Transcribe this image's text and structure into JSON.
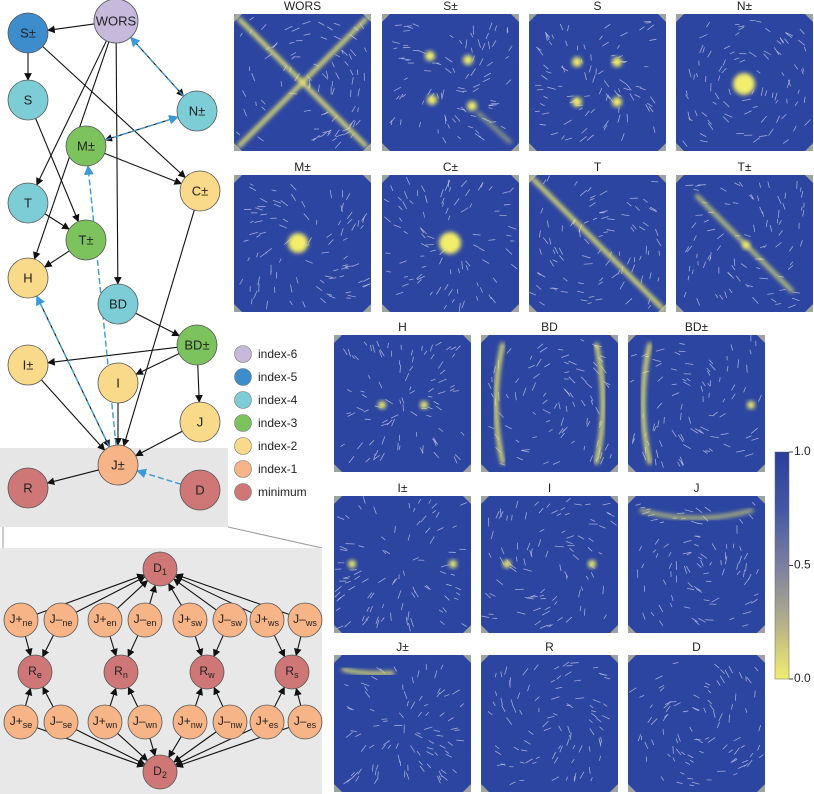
{
  "landscape": {
    "nodes": [
      {
        "label": "WORS",
        "color": "#c6b9dc"
      },
      {
        "label": "S±",
        "color": "#3d8ccc"
      },
      {
        "label": "S",
        "color": "#7dcdd6"
      },
      {
        "label": "N±",
        "color": "#7dcdd6"
      },
      {
        "label": "M±",
        "color": "#7cc25d"
      },
      {
        "label": "C±",
        "color": "#f9d98a"
      },
      {
        "label": "T",
        "color": "#7dcdd6"
      },
      {
        "label": "T±",
        "color": "#7cc25d"
      },
      {
        "label": "H",
        "color": "#f9d98a"
      },
      {
        "label": "BD",
        "color": "#7dcdd6"
      },
      {
        "label": "BD±",
        "color": "#7cc25d"
      },
      {
        "label": "I±",
        "color": "#f9d98a"
      },
      {
        "label": "I",
        "color": "#f9d98a"
      },
      {
        "label": "J",
        "color": "#f9d98a"
      },
      {
        "label": "J±",
        "color": "#f7b486"
      },
      {
        "label": "R",
        "color": "#cf7777"
      },
      {
        "label": "D",
        "color": "#cf7777"
      }
    ],
    "legend": [
      {
        "label": "index-6",
        "color": "#c6b9dc"
      },
      {
        "label": "index-5",
        "color": "#3d8ccc"
      },
      {
        "label": "index-4",
        "color": "#7dcdd6"
      },
      {
        "label": "index-3",
        "color": "#7cc25d"
      },
      {
        "label": "index-2",
        "color": "#f9d98a"
      },
      {
        "label": "index-1",
        "color": "#f7b486"
      },
      {
        "label": "minimum",
        "color": "#cf7777"
      }
    ]
  },
  "panels": [
    {
      "title": "WORS"
    },
    {
      "title": "S±"
    },
    {
      "title": "S"
    },
    {
      "title": "N±"
    },
    {
      "title": "M±"
    },
    {
      "title": "C±"
    },
    {
      "title": "T"
    },
    {
      "title": "T±"
    },
    {
      "title": "H"
    },
    {
      "title": "BD"
    },
    {
      "title": "BD±"
    },
    {
      "title": "I±"
    },
    {
      "title": "I"
    },
    {
      "title": "J"
    },
    {
      "title": "J±"
    },
    {
      "title": "R"
    },
    {
      "title": "D"
    }
  ],
  "colorbar": {
    "lim": [
      0,
      1
    ],
    "ticks": [
      {
        "value": 1,
        "label": "1.0"
      },
      {
        "value": 0.5,
        "label": "0.5"
      },
      {
        "value": 0,
        "label": "0.0"
      }
    ]
  },
  "detail": {
    "nodes": [
      {
        "label": "D",
        "sub": "1",
        "color": "#cf7777"
      },
      {
        "label": "J+",
        "sub": "ne",
        "color": "#f7b486"
      },
      {
        "label": "J–",
        "sub": "ne",
        "color": "#f7b486"
      },
      {
        "label": "J+",
        "sub": "en",
        "color": "#f7b486"
      },
      {
        "label": "J–",
        "sub": "en",
        "color": "#f7b486"
      },
      {
        "label": "J+",
        "sub": "sw",
        "color": "#f7b486"
      },
      {
        "label": "J–",
        "sub": "sw",
        "color": "#f7b486"
      },
      {
        "label": "J+",
        "sub": "ws",
        "color": "#f7b486"
      },
      {
        "label": "J–",
        "sub": "ws",
        "color": "#f7b486"
      },
      {
        "label": "R",
        "sub": "e",
        "color": "#cf7777"
      },
      {
        "label": "R",
        "sub": "n",
        "color": "#cf7777"
      },
      {
        "label": "R",
        "sub": "w",
        "color": "#cf7777"
      },
      {
        "label": "R",
        "sub": "s",
        "color": "#cf7777"
      },
      {
        "label": "J+",
        "sub": "se",
        "color": "#f7b486"
      },
      {
        "label": "J–",
        "sub": "se",
        "color": "#f7b486"
      },
      {
        "label": "J+",
        "sub": "wn",
        "color": "#f7b486"
      },
      {
        "label": "J–",
        "sub": "wn",
        "color": "#f7b486"
      },
      {
        "label": "J+",
        "sub": "nw",
        "color": "#f7b486"
      },
      {
        "label": "J–",
        "sub": "nw",
        "color": "#f7b486"
      },
      {
        "label": "J+",
        "sub": "es",
        "color": "#f7b486"
      },
      {
        "label": "J–",
        "sub": "es",
        "color": "#f7b486"
      },
      {
        "label": "D",
        "sub": "2",
        "color": "#cf7777"
      }
    ]
  }
}
